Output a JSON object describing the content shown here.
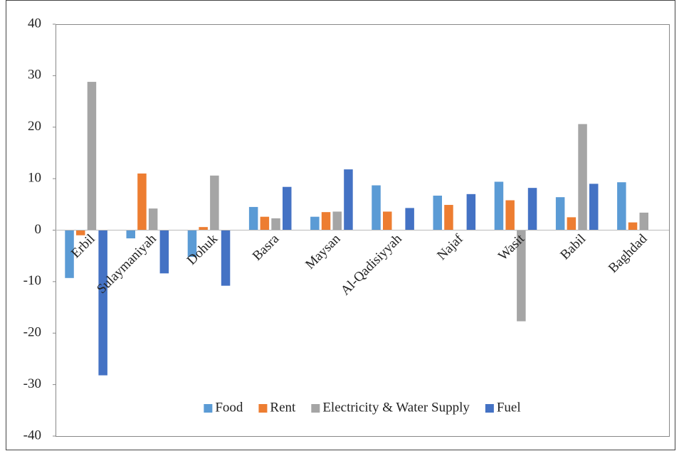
{
  "chart_data": {
    "type": "bar",
    "categories": [
      "Erbil",
      "Sulaymaniyah",
      "Dohuk",
      "Basra",
      "Maysan",
      "Al-Qadisiyyah",
      "Najaf",
      "Wasit",
      "Babil",
      "Baghdad"
    ],
    "series": [
      {
        "name": "Food",
        "color": "#5b9bd5",
        "values": [
          -9.3,
          -1.6,
          -5.2,
          4.5,
          2.6,
          8.7,
          6.7,
          9.4,
          6.4,
          9.3
        ]
      },
      {
        "name": "Rent",
        "color": "#ed7d31",
        "values": [
          -1.0,
          11.0,
          0.6,
          2.6,
          3.5,
          3.6,
          4.9,
          5.8,
          2.5,
          1.5
        ]
      },
      {
        "name": "Electricity & Water Supply",
        "color": "#a5a5a5",
        "values": [
          28.8,
          4.2,
          10.6,
          2.3,
          3.6,
          0,
          0,
          -17.7,
          20.6,
          3.4
        ]
      },
      {
        "name": "Fuel",
        "color": "#4472c4",
        "values": [
          -28.2,
          -8.4,
          -10.8,
          8.4,
          11.8,
          4.3,
          7.0,
          8.2,
          9.0,
          0
        ]
      }
    ],
    "ylim": [
      -40,
      40
    ],
    "yticks": [
      -40,
      -30,
      -20,
      -10,
      0,
      10,
      20,
      30,
      40
    ],
    "legend": "bottom"
  }
}
